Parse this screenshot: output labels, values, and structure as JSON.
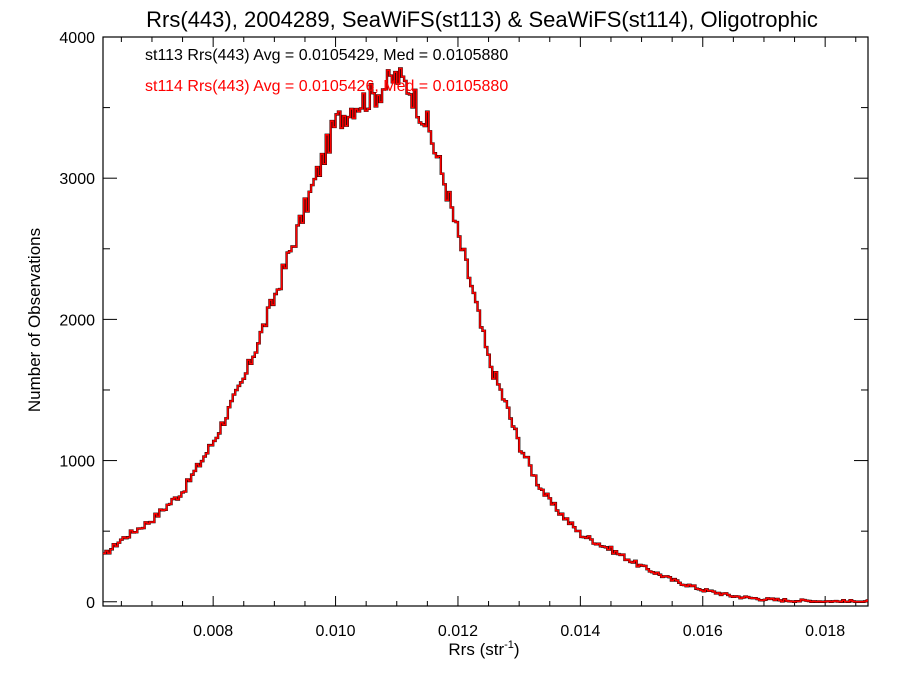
{
  "chart_data": {
    "type": "histogram",
    "title": "Rrs(443), 2004289, SeaWiFS(st113) & SeaWiFS(st114), Oligotrophic",
    "xlabel_main": "Rrs (str",
    "xlabel_sup": "-1",
    "xlabel_tail": ")",
    "ylabel": "Number of Observations",
    "xlim": [
      0.0062,
      0.0187
    ],
    "ylim": [
      -30,
      4000
    ],
    "x_ticks": [
      0.008,
      0.01,
      0.012,
      0.014,
      0.016,
      0.018
    ],
    "x_tick_labels": [
      "0.008",
      "0.010",
      "0.012",
      "0.014",
      "0.016",
      "0.018"
    ],
    "y_ticks": [
      0,
      1000,
      2000,
      3000,
      4000
    ],
    "y_tick_labels": [
      "0",
      "1000",
      "2000",
      "3000",
      "4000"
    ],
    "grid": false,
    "legend_placement": "top-left",
    "stats": [
      {
        "text": "st113 Rrs(443) Avg = 0.0105429, Med = 0.0105880",
        "color": "#000000"
      },
      {
        "text": "st114 Rrs(443) Avg = 0.0105426, Med = 0.0105880",
        "color": "#ff0000"
      }
    ],
    "series": [
      {
        "color": "#000000",
        "profile_x": [
          0.0062,
          0.0065,
          0.007,
          0.0075,
          0.008,
          0.0085,
          0.009,
          0.0095,
          0.01,
          0.0103,
          0.0106,
          0.0108,
          0.011,
          0.0112,
          0.0115,
          0.0118,
          0.012,
          0.0122,
          0.0125,
          0.0128,
          0.013,
          0.0133,
          0.0135,
          0.014,
          0.0145,
          0.015,
          0.0155,
          0.016,
          0.0165,
          0.017,
          0.0175,
          0.018,
          0.0187
        ],
        "profile_y": [
          320,
          440,
          580,
          780,
          1130,
          1570,
          2150,
          2780,
          3390,
          3520,
          3580,
          3650,
          3720,
          3650,
          3380,
          2950,
          2600,
          2280,
          1720,
          1380,
          1120,
          850,
          710,
          480,
          370,
          250,
          155,
          85,
          40,
          18,
          8,
          3,
          1
        ]
      },
      {
        "color": "#ff0000",
        "profile_x": [
          0.0062,
          0.0065,
          0.007,
          0.0075,
          0.008,
          0.0085,
          0.009,
          0.0095,
          0.01,
          0.0103,
          0.0106,
          0.0108,
          0.011,
          0.0112,
          0.0115,
          0.0118,
          0.012,
          0.0122,
          0.0125,
          0.0128,
          0.013,
          0.0133,
          0.0135,
          0.014,
          0.0145,
          0.015,
          0.0155,
          0.016,
          0.0165,
          0.017,
          0.0175,
          0.018,
          0.0187
        ],
        "profile_y": [
          320,
          440,
          580,
          780,
          1130,
          1570,
          2150,
          2780,
          3390,
          3520,
          3580,
          3650,
          3720,
          3650,
          3380,
          2950,
          2600,
          2280,
          1720,
          1380,
          1120,
          850,
          710,
          480,
          370,
          250,
          155,
          85,
          40,
          18,
          8,
          3,
          1
        ]
      }
    ]
  }
}
